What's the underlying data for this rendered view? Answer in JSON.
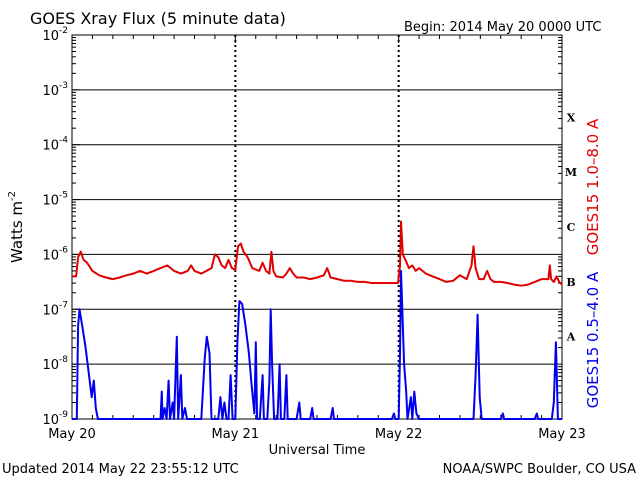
{
  "header": {
    "title": "GOES Xray Flux (5 minute data)",
    "begin": "Begin:  2014 May 20 0000 UTC"
  },
  "footer": {
    "updated": "Updated 2014 May 22 23:55:12 UTC",
    "credit": "NOAA/SWPC Boulder, CO USA"
  },
  "colors": {
    "long_channel": "#e00000",
    "short_channel": "#0000ee",
    "background": "#ffffff"
  },
  "chart_data": {
    "type": "line",
    "title": "GOES Xray Flux (5 minute data)",
    "xlabel": "Universal Time",
    "ylabel": "Watts m",
    "ylabel_sup": "-2",
    "yscale": "log",
    "ylim": [
      1e-09,
      0.01
    ],
    "xlim": [
      0,
      72
    ],
    "x_unit": "hours since 2014 May 20 0000 UTC",
    "x_ticks": [
      {
        "x": 0,
        "label": "May 20"
      },
      {
        "x": 24,
        "label": "May 21"
      },
      {
        "x": 48,
        "label": "May 22"
      },
      {
        "x": 72,
        "label": "May 23"
      }
    ],
    "y_ticks": [
      {
        "exp": -9,
        "label": "10",
        "sup": "-9"
      },
      {
        "exp": -8,
        "label": "10",
        "sup": "-8"
      },
      {
        "exp": -7,
        "label": "10",
        "sup": "-7"
      },
      {
        "exp": -6,
        "label": "10",
        "sup": "-6"
      },
      {
        "exp": -5,
        "label": "10",
        "sup": "-5"
      },
      {
        "exp": -4,
        "label": "10",
        "sup": "-4"
      },
      {
        "exp": -3,
        "label": "10",
        "sup": "-3"
      },
      {
        "exp": -2,
        "label": "10",
        "sup": "-2"
      }
    ],
    "flare_classes": [
      {
        "label": "A",
        "exp": -7.5
      },
      {
        "label": "B",
        "exp": -6.5
      },
      {
        "label": "C",
        "exp": -5.5
      },
      {
        "label": "M",
        "exp": -4.5
      },
      {
        "label": "X",
        "exp": -3.5
      }
    ],
    "grid": true,
    "series": [
      {
        "name": "GOES15 1.0–8.0 A",
        "color": "#e00000",
        "points": [
          [
            0,
            -6.4
          ],
          [
            0.6,
            -6.4
          ],
          [
            0.9,
            -6.05
          ],
          [
            1.3,
            -5.95
          ],
          [
            1.7,
            -6.1
          ],
          [
            2.2,
            -6.15
          ],
          [
            3,
            -6.3
          ],
          [
            4,
            -6.38
          ],
          [
            5,
            -6.42
          ],
          [
            6,
            -6.45
          ],
          [
            7,
            -6.42
          ],
          [
            8,
            -6.38
          ],
          [
            9,
            -6.35
          ],
          [
            10,
            -6.3
          ],
          [
            11,
            -6.35
          ],
          [
            12,
            -6.3
          ],
          [
            13,
            -6.25
          ],
          [
            14,
            -6.2
          ],
          [
            15,
            -6.3
          ],
          [
            16,
            -6.35
          ],
          [
            17,
            -6.3
          ],
          [
            17.5,
            -6.2
          ],
          [
            18,
            -6.3
          ],
          [
            19,
            -6.35
          ],
          [
            20.5,
            -6.25
          ],
          [
            21,
            -6.0
          ],
          [
            21.5,
            -6.05
          ],
          [
            22,
            -6.2
          ],
          [
            22.5,
            -6.25
          ],
          [
            23,
            -6.1
          ],
          [
            23.5,
            -6.25
          ],
          [
            24,
            -6.28
          ],
          [
            24.4,
            -5.85
          ],
          [
            24.8,
            -5.8
          ],
          [
            25.2,
            -5.95
          ],
          [
            25.8,
            -6.05
          ],
          [
            26.5,
            -6.25
          ],
          [
            27.5,
            -6.3
          ],
          [
            28,
            -6.15
          ],
          [
            28.5,
            -6.3
          ],
          [
            29,
            -6.35
          ],
          [
            29.3,
            -5.95
          ],
          [
            29.6,
            -6.3
          ],
          [
            30,
            -6.4
          ],
          [
            31,
            -6.42
          ],
          [
            31.5,
            -6.35
          ],
          [
            32,
            -6.25
          ],
          [
            32.5,
            -6.35
          ],
          [
            33,
            -6.42
          ],
          [
            34,
            -6.42
          ],
          [
            35,
            -6.45
          ],
          [
            36,
            -6.42
          ],
          [
            37,
            -6.38
          ],
          [
            37.5,
            -6.25
          ],
          [
            38,
            -6.42
          ],
          [
            39,
            -6.45
          ],
          [
            40,
            -6.48
          ],
          [
            41,
            -6.48
          ],
          [
            42,
            -6.5
          ],
          [
            43,
            -6.5
          ],
          [
            44,
            -6.52
          ],
          [
            45,
            -6.52
          ],
          [
            46,
            -6.52
          ],
          [
            47,
            -6.52
          ],
          [
            47.9,
            -6.52
          ],
          [
            48.2,
            -6.2
          ],
          [
            48.35,
            -5.4
          ],
          [
            48.6,
            -6.0
          ],
          [
            49,
            -6.1
          ],
          [
            49.5,
            -6.25
          ],
          [
            50,
            -6.2
          ],
          [
            50.5,
            -6.3
          ],
          [
            51,
            -6.25
          ],
          [
            52,
            -6.35
          ],
          [
            53,
            -6.4
          ],
          [
            54,
            -6.45
          ],
          [
            55,
            -6.5
          ],
          [
            56,
            -6.48
          ],
          [
            57,
            -6.38
          ],
          [
            58,
            -6.45
          ],
          [
            58.7,
            -6.2
          ],
          [
            59,
            -5.85
          ],
          [
            59.3,
            -6.25
          ],
          [
            59.8,
            -6.45
          ],
          [
            60.5,
            -6.45
          ],
          [
            61,
            -6.3
          ],
          [
            61.5,
            -6.45
          ],
          [
            62,
            -6.5
          ],
          [
            63,
            -6.5
          ],
          [
            64,
            -6.52
          ],
          [
            65,
            -6.55
          ],
          [
            66,
            -6.57
          ],
          [
            67,
            -6.55
          ],
          [
            68,
            -6.5
          ],
          [
            69,
            -6.45
          ],
          [
            70,
            -6.45
          ],
          [
            70.2,
            -6.2
          ],
          [
            70.4,
            -6.45
          ],
          [
            70.8,
            -6.5
          ],
          [
            71.2,
            -6.4
          ],
          [
            71.6,
            -6.5
          ],
          [
            72,
            -6.55
          ]
        ]
      },
      {
        "name": "GOES15 0.5–4.0 A",
        "color": "#0000ee",
        "points": [
          [
            0,
            -9.0
          ],
          [
            0.7,
            -9.0
          ],
          [
            0.9,
            -7.3
          ],
          [
            1.1,
            -7.0
          ],
          [
            1.5,
            -7.3
          ],
          [
            2,
            -7.7
          ],
          [
            2.5,
            -8.2
          ],
          [
            2.9,
            -8.6
          ],
          [
            3.2,
            -8.3
          ],
          [
            3.5,
            -8.8
          ],
          [
            3.8,
            -9.0
          ],
          [
            13,
            -9.0
          ],
          [
            13.2,
            -8.5
          ],
          [
            13.3,
            -9.0
          ],
          [
            13.6,
            -8.8
          ],
          [
            13.9,
            -9.0
          ],
          [
            14.2,
            -8.3
          ],
          [
            14.4,
            -9.0
          ],
          [
            14.8,
            -8.7
          ],
          [
            15,
            -9.0
          ],
          [
            15.4,
            -7.5
          ],
          [
            15.6,
            -9.0
          ],
          [
            16,
            -8.2
          ],
          [
            16.2,
            -9.0
          ],
          [
            16.6,
            -8.8
          ],
          [
            16.9,
            -9.0
          ],
          [
            19,
            -9.0
          ],
          [
            19.5,
            -7.9
          ],
          [
            19.8,
            -7.5
          ],
          [
            20.2,
            -7.8
          ],
          [
            20.5,
            -9.0
          ],
          [
            21.5,
            -9.0
          ],
          [
            21.8,
            -8.6
          ],
          [
            22.1,
            -9.0
          ],
          [
            22.4,
            -8.7
          ],
          [
            22.7,
            -9.0
          ],
          [
            23,
            -9.0
          ],
          [
            23.3,
            -8.2
          ],
          [
            23.6,
            -9.0
          ],
          [
            24,
            -9.0
          ],
          [
            24.3,
            -7.6
          ],
          [
            24.6,
            -6.85
          ],
          [
            25,
            -6.9
          ],
          [
            25.5,
            -7.3
          ],
          [
            26,
            -7.8
          ],
          [
            26.4,
            -8.4
          ],
          [
            26.8,
            -8.9
          ],
          [
            27,
            -7.6
          ],
          [
            27.2,
            -9.0
          ],
          [
            27.6,
            -9.0
          ],
          [
            28,
            -8.2
          ],
          [
            28.2,
            -9.0
          ],
          [
            28.7,
            -9.0
          ],
          [
            29,
            -8.3
          ],
          [
            29.2,
            -7.0
          ],
          [
            29.4,
            -8.0
          ],
          [
            29.7,
            -9.0
          ],
          [
            30.2,
            -9.0
          ],
          [
            30.5,
            -8.0
          ],
          [
            30.7,
            -9.0
          ],
          [
            31.2,
            -9.0
          ],
          [
            31.5,
            -8.2
          ],
          [
            31.7,
            -9.0
          ],
          [
            33,
            -9.0
          ],
          [
            33.4,
            -8.7
          ],
          [
            33.6,
            -9.0
          ],
          [
            35,
            -9.0
          ],
          [
            35.3,
            -8.8
          ],
          [
            35.5,
            -9.0
          ],
          [
            38,
            -9.0
          ],
          [
            38.3,
            -8.8
          ],
          [
            38.5,
            -9.0
          ],
          [
            47,
            -9.0
          ],
          [
            47.3,
            -8.9
          ],
          [
            47.5,
            -9.0
          ],
          [
            48,
            -9.0
          ],
          [
            48.2,
            -7.8
          ],
          [
            48.35,
            -6.3
          ],
          [
            48.5,
            -6.9
          ],
          [
            48.8,
            -8.0
          ],
          [
            49.1,
            -8.5
          ],
          [
            49.3,
            -9.0
          ],
          [
            49.8,
            -8.6
          ],
          [
            50,
            -9.0
          ],
          [
            50.3,
            -8.5
          ],
          [
            50.6,
            -8.9
          ],
          [
            51,
            -9.0
          ],
          [
            59,
            -9.0
          ],
          [
            59.3,
            -8.2
          ],
          [
            59.6,
            -7.1
          ],
          [
            59.9,
            -8.6
          ],
          [
            60.2,
            -9.0
          ],
          [
            63,
            -9.0
          ],
          [
            63.3,
            -8.9
          ],
          [
            63.5,
            -9.0
          ],
          [
            68,
            -9.0
          ],
          [
            68.3,
            -8.9
          ],
          [
            68.5,
            -9.0
          ],
          [
            70.5,
            -9.0
          ],
          [
            70.8,
            -8.7
          ],
          [
            71.1,
            -7.6
          ],
          [
            71.4,
            -9.0
          ],
          [
            72,
            -9.0
          ]
        ]
      }
    ]
  }
}
